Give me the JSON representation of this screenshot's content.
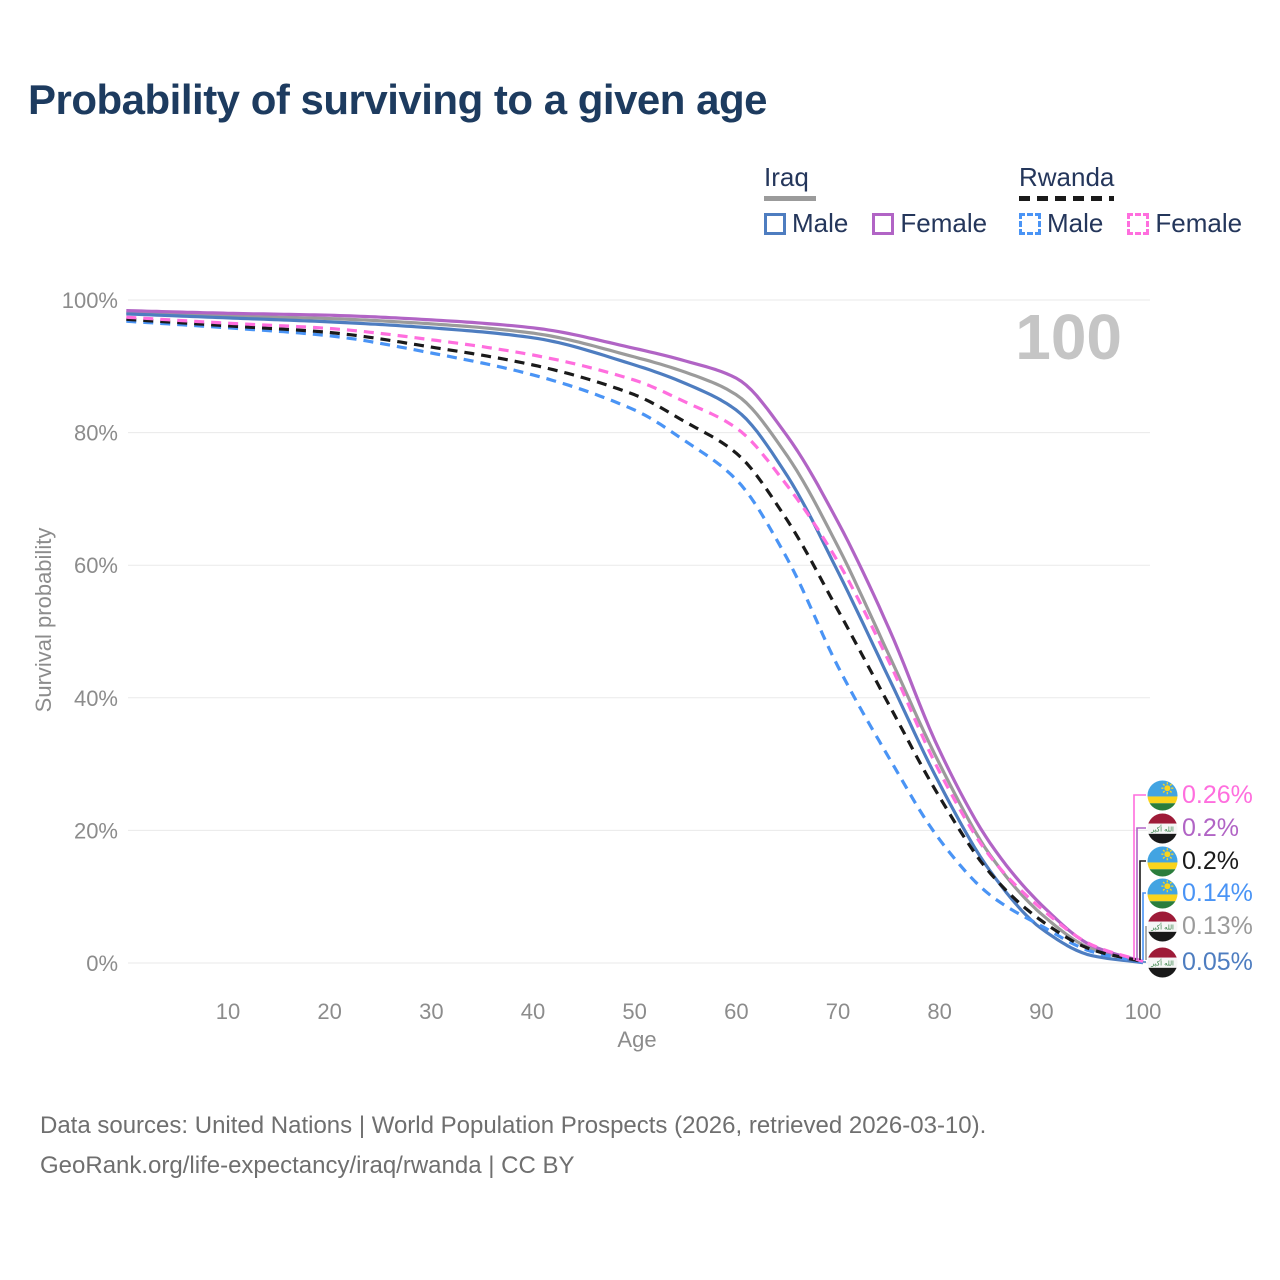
{
  "title": "Probability of surviving to a given age",
  "watermark_age": "100",
  "legend": {
    "groups": [
      {
        "label": "Iraq",
        "line_style": "solid",
        "underline_color": "#9b9b9b",
        "items": [
          {
            "label": "Male",
            "color": "#4e7dc0"
          },
          {
            "label": "Female",
            "color": "#b164c5"
          }
        ]
      },
      {
        "label": "Rwanda",
        "line_style": "dashed",
        "underline_color": "#1a1a1a",
        "items": [
          {
            "label": "Male",
            "color": "#4a94f5"
          },
          {
            "label": "Female",
            "color": "#ff6ede"
          }
        ]
      }
    ]
  },
  "chart_data": {
    "type": "line",
    "title": "Probability of surviving to a given age",
    "xlabel": "Age",
    "ylabel": "Survival probability",
    "xlim": [
      0,
      100
    ],
    "ylim": [
      0,
      100
    ],
    "grid": true,
    "x_ticks": [
      {
        "value": 10,
        "label": "10"
      },
      {
        "value": 20,
        "label": "20"
      },
      {
        "value": 30,
        "label": "30"
      },
      {
        "value": 40,
        "label": "40"
      },
      {
        "value": 50,
        "label": "50"
      },
      {
        "value": 60,
        "label": "60"
      },
      {
        "value": 70,
        "label": "70"
      },
      {
        "value": 80,
        "label": "80"
      },
      {
        "value": 90,
        "label": "90"
      },
      {
        "value": 100,
        "label": "100"
      }
    ],
    "y_ticks": [
      {
        "value": 0,
        "label": "0%"
      },
      {
        "value": 20,
        "label": "20%"
      },
      {
        "value": 40,
        "label": "40%"
      },
      {
        "value": 60,
        "label": "60%"
      },
      {
        "value": 80,
        "label": "80%"
      },
      {
        "value": 100,
        "label": "100%"
      }
    ],
    "ages": [
      0,
      10,
      20,
      30,
      40,
      50,
      55,
      60,
      65,
      70,
      75,
      80,
      85,
      90,
      95,
      100
    ],
    "series": [
      {
        "name": "Iraq Both sexes",
        "country": "iraq",
        "sex": "both",
        "style": "solid",
        "color": "#9b9b9b",
        "values": [
          98.1,
          97.6,
          97.2,
          96.4,
          95.0,
          91.4,
          89.1,
          85.7,
          76.5,
          62.8,
          46.5,
          30.0,
          16.2,
          7.4,
          2.1,
          0.13
        ]
      },
      {
        "name": "Iraq Male",
        "country": "iraq",
        "sex": "male",
        "style": "solid",
        "color": "#4e7dc0",
        "values": [
          97.9,
          97.3,
          96.7,
          95.8,
          94.3,
          90.2,
          87.4,
          83.4,
          73.5,
          59.0,
          43.0,
          27.0,
          13.8,
          5.2,
          1.1,
          0.05
        ]
      },
      {
        "name": "Iraq Female",
        "country": "iraq",
        "sex": "female",
        "style": "solid",
        "color": "#b164c5",
        "values": [
          98.4,
          98.0,
          97.7,
          97.0,
          95.8,
          92.7,
          90.8,
          88.2,
          79.5,
          66.5,
          50.5,
          32.0,
          18.0,
          8.8,
          2.6,
          0.2
        ]
      },
      {
        "name": "Rwanda Male",
        "country": "rwanda",
        "sex": "male",
        "style": "dashed",
        "color": "#4a94f5",
        "values": [
          96.8,
          95.8,
          94.6,
          92.0,
          88.7,
          83.4,
          78.7,
          72.9,
          61.0,
          44.7,
          31.0,
          18.6,
          10.2,
          5.6,
          1.7,
          0.14
        ]
      },
      {
        "name": "Rwanda Both sexes",
        "country": "rwanda",
        "sex": "both",
        "style": "dashed",
        "color": "#1a1a1a",
        "values": [
          97.1,
          96.1,
          95.1,
          92.9,
          90.2,
          85.7,
          81.6,
          76.9,
          66.8,
          53.2,
          39.0,
          25.0,
          13.5,
          6.4,
          2.0,
          0.2
        ]
      },
      {
        "name": "Rwanda Female",
        "country": "rwanda",
        "sex": "female",
        "style": "dashed",
        "color": "#ff6ede",
        "values": [
          97.4,
          96.5,
          95.7,
          94.0,
          91.7,
          87.9,
          84.6,
          80.7,
          72.0,
          60.5,
          45.5,
          28.8,
          16.0,
          8.2,
          2.7,
          0.26
        ]
      }
    ]
  },
  "end_labels": [
    {
      "flag": "rwanda",
      "value": "0.26%",
      "color": "#ff6ede"
    },
    {
      "flag": "iraq",
      "value": "0.2%",
      "color": "#b164c5"
    },
    {
      "flag": "rwanda",
      "value": "0.2%",
      "color": "#1a1a1a"
    },
    {
      "flag": "rwanda",
      "value": "0.14%",
      "color": "#4a94f5"
    },
    {
      "flag": "iraq",
      "value": "0.13%",
      "color": "#9b9b9b"
    },
    {
      "flag": "iraq",
      "value": "0.05%",
      "color": "#4e7dc0"
    }
  ],
  "footer": {
    "line1": "Data sources: United Nations | World Population Prospects (2026, retrieved 2026-03-10).",
    "line2": "GeoRank.org/life-expectancy/iraq/rwanda | CC BY"
  }
}
